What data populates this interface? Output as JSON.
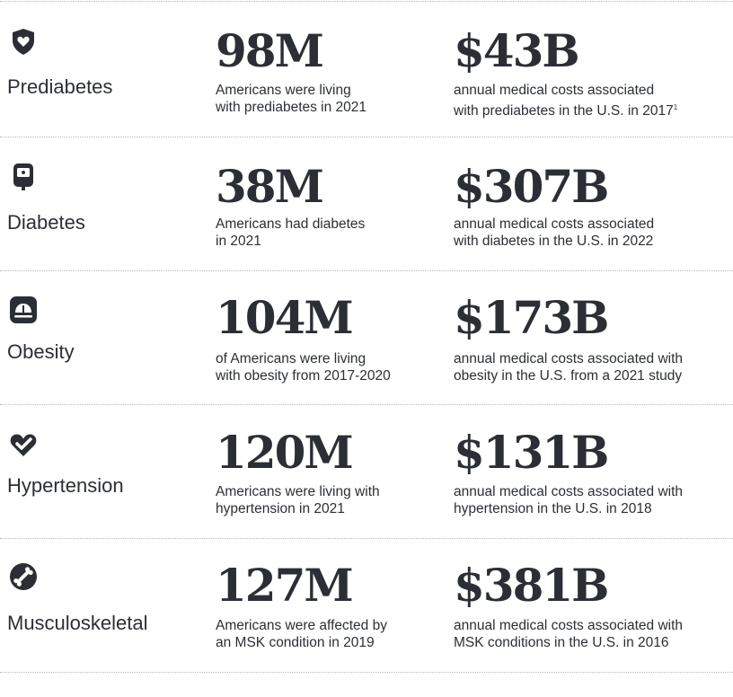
{
  "rows": [
    {
      "condition": "Prediabetes",
      "icon": "heart-shield-icon",
      "people_stat": "98M",
      "people_line1": "Americans were living",
      "people_line2": "with prediabetes in 2021",
      "cost_stat": "$43B",
      "cost_line1": "annual medical costs associated",
      "cost_line2": "with prediabetes in the U.S. in 2017",
      "cost_footnote": "1"
    },
    {
      "condition": "Diabetes",
      "icon": "glucose-meter-icon",
      "people_stat": "38M",
      "people_line1": "Americans had diabetes",
      "people_line2": "in 2021",
      "cost_stat": "$307B",
      "cost_line1": "annual medical costs associated",
      "cost_line2": "with diabetes in the U.S. in 2022"
    },
    {
      "condition": "Obesity",
      "icon": "scale-icon",
      "people_stat": "104M",
      "people_line1": "of Americans were living",
      "people_line2": "with obesity from 2017-2020",
      "cost_stat": "$173B",
      "cost_line1": "annual medical costs associated with",
      "cost_line2": "obesity in the U.S. from a 2021 study"
    },
    {
      "condition": "Hypertension",
      "icon": "heart-check-icon",
      "people_stat": "120M",
      "people_line1": "Americans were living with",
      "people_line2": "hypertension in 2021",
      "cost_stat": "$131B",
      "cost_line1": "annual medical costs associated with",
      "cost_line2": "hypertension in the U.S. in 2018"
    },
    {
      "condition": "Musculoskeletal",
      "icon": "bone-icon",
      "people_stat": "127M",
      "people_line1": "Americans were affected by",
      "people_line2": "an MSK condition in 2019",
      "cost_stat": "$381B",
      "cost_line1": "annual medical costs associated with",
      "cost_line2": "MSK conditions in the U.S. in 2016"
    }
  ]
}
